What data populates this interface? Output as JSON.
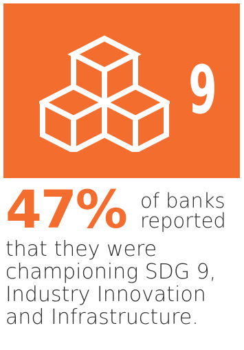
{
  "goal_tile": {
    "number": "9",
    "background_color": "#f36d2f",
    "icon": "stacked-cubes-icon"
  },
  "stat": {
    "percent": "47%",
    "percent_color": "#f36d2f",
    "line1a": "of banks",
    "line1b": "reported",
    "line2": "that they were",
    "line3": "championing SDG 9,",
    "line4": "Industry Innovation",
    "line5": "and Infrastructure."
  }
}
